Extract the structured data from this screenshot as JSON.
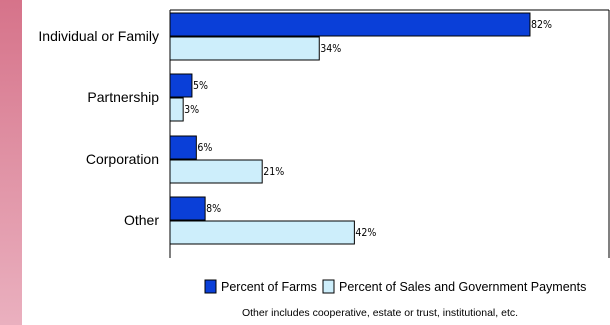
{
  "chart_data": {
    "type": "bar",
    "orientation": "horizontal",
    "categories": [
      "Individual or Family",
      "Partnership",
      "Corporation",
      "Other"
    ],
    "series": [
      {
        "name": "Percent of Farms",
        "values": [
          82,
          5,
          6,
          8
        ],
        "labels": [
          "82%",
          "5%",
          "6%",
          "8%"
        ],
        "color": "#0a3fd8"
      },
      {
        "name": "Percent of Sales and Government Payments",
        "values": [
          34,
          3,
          21,
          42
        ],
        "labels": [
          "34%",
          "3%",
          "21%",
          "42%"
        ],
        "color": "#cdeefb"
      }
    ],
    "xlim": [
      0,
      100
    ],
    "grid": false,
    "legend_position": "bottom",
    "footnote": "Other includes cooperative, estate or trust, institutional, etc."
  }
}
